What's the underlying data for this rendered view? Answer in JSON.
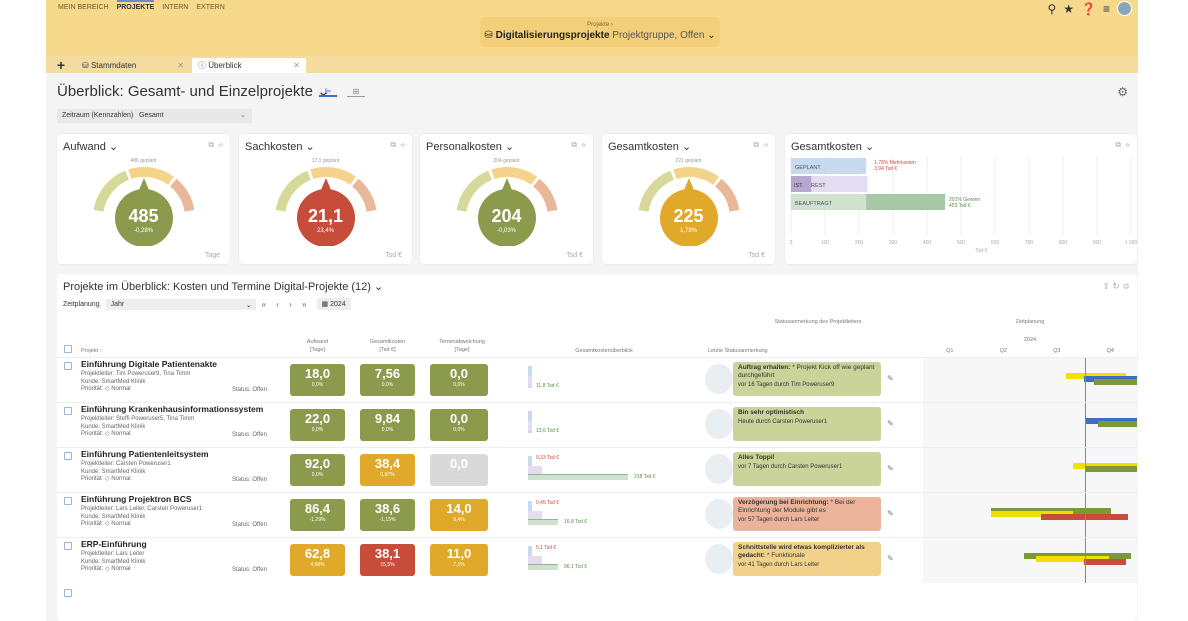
{
  "nav": {
    "items": [
      "MEIN BEREICH",
      "PROJEKTE",
      "INTERN",
      "EXTERN"
    ],
    "active": "PROJEKTE"
  },
  "context": {
    "small": "Projekte ›",
    "title": "Digitalisierungsprojekte",
    "subtitle": "Projektgruppe, Offen"
  },
  "tabs": [
    {
      "label": "Stammdaten"
    },
    {
      "label": "Überblick"
    }
  ],
  "page": {
    "title": "Überblick: Gesamt- und Einzelprojekte"
  },
  "period": {
    "label": "Zeitraum (Kennzahlen)",
    "value": "Gesamt"
  },
  "cards": [
    {
      "title": "Aufwand",
      "planned": "486 geplant",
      "value": "485",
      "delta": "-0,28%",
      "unit": "Tage",
      "color": "#8c9a4e"
    },
    {
      "title": "Sachkosten",
      "planned": "17,1 geplant",
      "value": "21,1",
      "delta": "23,4%",
      "unit": "Tsd €",
      "color": "#c84c3a"
    },
    {
      "title": "Personalkosten",
      "planned": "204 geplant",
      "value": "204",
      "delta": "-0,03%",
      "unit": "Tsd €",
      "color": "#8c9a4e"
    },
    {
      "title": "Gesamtkosten",
      "planned": "221 geplant",
      "value": "225",
      "delta": "1,78%",
      "unit": "Tsd €",
      "color": "#e0a92a"
    }
  ],
  "chart_data": {
    "type": "bar",
    "title": "Gesamtkosten",
    "categories": [
      "GEPLANT",
      "IST",
      "REST",
      "BEAUFTRAGT"
    ],
    "values": [
      221,
      60,
      165,
      453
    ],
    "xlabel": "Tsd €",
    "xlim": [
      0,
      1000
    ],
    "ticks": [
      "0",
      "100",
      "200",
      "300",
      "400",
      "500",
      "600",
      "700",
      "800",
      "900",
      "1 000"
    ],
    "annotations": [
      "1,78% Mehrkosten",
      "3,94 Tsd €",
      "201% Gewinn",
      "453 Tsd €"
    ]
  },
  "chart_labels": {
    "unit": "Tsd €"
  },
  "section": {
    "title": "Projekte im Überblick: Kosten und Termine Digital-Projekte (12)",
    "zeitplanung_label": "Zeitplanung",
    "zeitplanung_value": "Jahr",
    "year": "2024",
    "status_group": "Statusanmerkung des Projektleiters",
    "zeit_group": "Zeitplanung",
    "quarters": [
      "Q1",
      "Q2",
      "Q3",
      "Q4"
    ]
  },
  "columns": {
    "projekt": "Projekt ↑",
    "aufwand": "Aufwand",
    "aufwand_unit": "[Tage]",
    "gesamtkosten": "Gesamtkosten",
    "gesamtkosten_unit": "[Tsd €]",
    "termin": "Terminabweichung",
    "termin_unit": "[Tage]",
    "ueberblick": "Gesamtkostenüberblick",
    "status": "Letzte Statusanmerkung"
  },
  "rows": [
    {
      "name": "Einführung Digitale Patientenakte",
      "leiter": "Projektleiter:  Tim Poweruser9, Tina Timm",
      "kunde": "Kunde:  SmartMed Klinik",
      "prio": "Priorität:  ◇ Normal",
      "status": "Status:  Offen",
      "kpis": [
        [
          "18,0",
          "0,0%",
          "#8c9a4e"
        ],
        [
          "7,56",
          "0,0%",
          "#8c9a4e"
        ],
        [
          "0,0",
          "0,0%",
          "#8c9a4e"
        ]
      ],
      "cost": [
        "11,8 Tsd €"
      ],
      "bhead": "Auftrag erhalten:",
      "btext": "* Projekt Kick off wie geplant durchgeführt",
      "bfoot": "vor 16 Tagen durch Tim Poweruser9",
      "bcolor": "#c9d39a"
    },
    {
      "name": "Einführung Krankenhausinformationssystem",
      "leiter": "Projektleiter:  Steffi Poweruser5, Tina Timm",
      "kunde": "Kunde:  SmartMed Klinik",
      "prio": "Priorität:  ◇ Normal",
      "status": "Status:  Offen",
      "kpis": [
        [
          "22,0",
          "0,0%",
          "#8c9a4e"
        ],
        [
          "9,84",
          "0,0%",
          "#8c9a4e"
        ],
        [
          "0,0",
          "0,0%",
          "#8c9a4e"
        ]
      ],
      "cost": [
        "13,6 Tsd €"
      ],
      "bhead": "Bin sehr optimistisch",
      "btext": "",
      "bfoot": "Heute durch Carsten Poweruser1",
      "bcolor": "#c9d39a"
    },
    {
      "name": "Einführung Patientenleitsystem",
      "leiter": "Projektleiter:  Carsten Poweruser1",
      "kunde": "Kunde:  SmartMed Klinik",
      "prio": "Priorität:  ◇ Normal",
      "status": "Status:  Offen",
      "kpis": [
        [
          "92,0",
          "0,0%",
          "#8c9a4e"
        ],
        [
          "38,4",
          "0,87%",
          "#e0a92a"
        ],
        [
          "0,0",
          "-",
          "#d9d9d9"
        ]
      ],
      "cost": [
        "0,33 Tsd €",
        "218 Tsd €"
      ],
      "bhead": "Alles Toppi!",
      "btext": "",
      "bfoot": "vor 7 Tagen durch Carsten Poweruser1",
      "bcolor": "#c9d39a"
    },
    {
      "name": "Einführung Projektron BCS",
      "leiter": "Projektleiter:  Lars Leiter, Carsten Poweruser1",
      "kunde": "Kunde:  SmartMed Klinik",
      "prio": "Priorität:  ◇ Normal",
      "status": "Status:  Offen",
      "kpis": [
        [
          "86,4",
          "-1,29%",
          "#8c9a4e"
        ],
        [
          "38,6",
          "-1,15%",
          "#8c9a4e"
        ],
        [
          "14,0",
          "9,4%",
          "#e0a92a"
        ]
      ],
      "cost": [
        "0,45 Tsd €",
        "16,8 Tsd €"
      ],
      "bhead": "Verzögerung bei Einrichtung:",
      "btext": "* Bei der Einrichtung der Module gibt es",
      "bfoot": "vor 57 Tagen durch Lars Leiter",
      "bcolor": "#eab39a"
    },
    {
      "name": "ERP-Einführung",
      "leiter": "Projektleiter:  Lars Leiter",
      "kunde": "Kunde:  SmartMed Klinik",
      "prio": "Priorität:  ◇ Normal",
      "status": "Status:  Offen",
      "kpis": [
        [
          "62,8",
          "4,58%",
          "#e0a92a"
        ],
        [
          "38,1",
          "15,5%",
          "#c84c3a"
        ],
        [
          "11,0",
          "7,1%",
          "#e0a92a"
        ]
      ],
      "cost": [
        "5,1 Tsd €",
        "96,1 Tsd €"
      ],
      "bhead": "Schnittstelle wird etwas komplizierter als gedacht:",
      "btext": "* Funktionale",
      "bfoot": "vor 41 Tagen durch Lars Leiter",
      "bcolor": "#f2d28a"
    }
  ]
}
